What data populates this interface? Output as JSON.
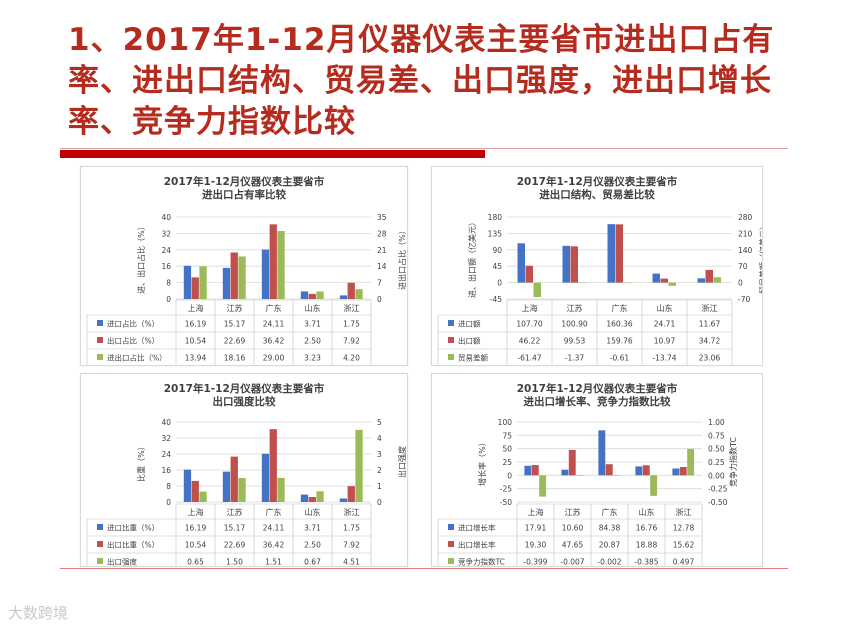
{
  "slide": {
    "title": "1、2017年1-12月仪器仪表主要省市进出口占有率、进出口结构、贸易差、出口强度，进出口增长率、竞争力指数比较"
  },
  "watermark": "大数跨境",
  "colors": {
    "blue": "#4472c4",
    "red": "#c0504d",
    "green": "#9bbb59",
    "title_red": "#b52b1e"
  },
  "chart_data": [
    {
      "type": "bar",
      "title_lines": [
        "2017年1-12月仪器仪表主要省市",
        "进出口占有率比较"
      ],
      "categories": [
        "上海",
        "江苏",
        "广东",
        "山东",
        "浙江"
      ],
      "ylabel_left": "进、出口占比（%）",
      "ylabel_right": "进出口占比（%）",
      "ylim_left": [
        0,
        40
      ],
      "ylim_right": [
        0,
        35
      ],
      "yticks_left": [
        "40",
        "32",
        "24",
        "16",
        "8",
        "0"
      ],
      "yticks_right": [
        "35",
        "28",
        "21",
        "14",
        "7",
        "0"
      ],
      "series": [
        {
          "name": "进口占比（%）",
          "color": "#4472c4",
          "axis": "left",
          "values": [
            16.19,
            15.17,
            24.11,
            3.71,
            1.75
          ],
          "labels": [
            "16.19",
            "15.17",
            "24.11",
            "3.71",
            "1.75"
          ]
        },
        {
          "name": "出口占比（%）",
          "color": "#c0504d",
          "axis": "left",
          "values": [
            10.54,
            22.69,
            36.42,
            2.5,
            7.92
          ],
          "labels": [
            "10.54",
            "22.69",
            "36.42",
            "2.50",
            "7.92"
          ]
        },
        {
          "name": "进出口占比（%）",
          "color": "#9bbb59",
          "axis": "right",
          "values": [
            13.94,
            18.16,
            29.0,
            3.23,
            4.2
          ],
          "labels": [
            "13.94",
            "18.16",
            "29.00",
            "3.23",
            "4.20"
          ]
        }
      ]
    },
    {
      "type": "bar",
      "title_lines": [
        "2017年1-12月仪器仪表主要省市",
        "进出口结构、贸易差比较"
      ],
      "categories": [
        "上海",
        "江苏",
        "广东",
        "山东",
        "浙江"
      ],
      "ylabel_left": "进、出口额（亿美元）",
      "ylabel_right": "贸易差额（亿美元）",
      "ylim_left": [
        -45,
        180
      ],
      "ylim_right": [
        -70,
        280
      ],
      "yticks_left": [
        "180",
        "135",
        "90",
        "45",
        "0",
        "-45"
      ],
      "yticks_right": [
        "280",
        "210",
        "140",
        "70",
        "0",
        "-70"
      ],
      "series": [
        {
          "name": "进口额",
          "color": "#4472c4",
          "axis": "left",
          "values": [
            107.7,
            100.9,
            160.36,
            24.71,
            11.67
          ],
          "labels": [
            "107.70",
            "100.90",
            "160.36",
            "24.71",
            "11.67"
          ]
        },
        {
          "name": "出口额",
          "color": "#c0504d",
          "axis": "left",
          "values": [
            46.22,
            99.53,
            159.76,
            10.97,
            34.72
          ],
          "labels": [
            "46.22",
            "99.53",
            "159.76",
            "10.97",
            "34.72"
          ]
        },
        {
          "name": "贸易差额",
          "color": "#9bbb59",
          "axis": "right",
          "values": [
            -61.47,
            -1.37,
            -0.61,
            -13.74,
            23.06
          ],
          "labels": [
            "-61.47",
            "-1.37",
            "-0.61",
            "-13.74",
            "23.06"
          ]
        }
      ]
    },
    {
      "type": "bar",
      "title_lines": [
        "2017年1-12月仪器仪表主要省市",
        "出口强度比较"
      ],
      "categories": [
        "上海",
        "江苏",
        "广东",
        "山东",
        "浙江"
      ],
      "ylabel_left": "比重（%）",
      "ylabel_right": "出口强度",
      "ylim_left": [
        0,
        40
      ],
      "ylim_right": [
        0,
        5
      ],
      "yticks_left": [
        "40",
        "32",
        "24",
        "16",
        "8",
        "0"
      ],
      "yticks_right": [
        "5",
        "4",
        "3",
        "2",
        "1",
        "0"
      ],
      "series": [
        {
          "name": "进口比重（%）",
          "color": "#4472c4",
          "axis": "left",
          "values": [
            16.19,
            15.17,
            24.11,
            3.71,
            1.75
          ],
          "labels": [
            "16.19",
            "15.17",
            "24.11",
            "3.71",
            "1.75"
          ]
        },
        {
          "name": "出口比重（%）",
          "color": "#c0504d",
          "axis": "left",
          "values": [
            10.54,
            22.69,
            36.42,
            2.5,
            7.92
          ],
          "labels": [
            "10.54",
            "22.69",
            "36.42",
            "2.50",
            "7.92"
          ]
        },
        {
          "name": "出口强度",
          "color": "#9bbb59",
          "axis": "right",
          "values": [
            0.65,
            1.5,
            1.51,
            0.67,
            4.51
          ],
          "labels": [
            "0.65",
            "1.50",
            "1.51",
            "0.67",
            "4.51"
          ]
        }
      ]
    },
    {
      "type": "bar",
      "title_lines": [
        "2017年1-12月仪器仪表主要省市",
        "进出口增长率、竞争力指数比较"
      ],
      "categories": [
        "上海",
        "江苏",
        "广东",
        "山东",
        "浙江"
      ],
      "ylabel_left": "增长率（%）",
      "ylabel_right": "竞争力指数TC",
      "ylim_left": [
        -50,
        100
      ],
      "ylim_right": [
        -0.5,
        1.0
      ],
      "yticks_left": [
        "100",
        "75",
        "50",
        "25",
        "0",
        "-25",
        "-50"
      ],
      "yticks_right": [
        "1.00",
        "0.75",
        "0.50",
        "0.25",
        "0.00",
        "-0.25",
        "-0.50"
      ],
      "series": [
        {
          "name": "进口增长率",
          "color": "#4472c4",
          "axis": "left",
          "values": [
            17.91,
            10.6,
            84.38,
            16.76,
            12.78
          ],
          "labels": [
            "17.91",
            "10.60",
            "84.38",
            "16.76",
            "12.78"
          ]
        },
        {
          "name": "出口增长率",
          "color": "#c0504d",
          "axis": "left",
          "values": [
            19.3,
            47.65,
            20.87,
            18.88,
            15.62
          ],
          "labels": [
            "19.30",
            "47.65",
            "20.87",
            "18.88",
            "15.62"
          ]
        },
        {
          "name": "竞争力指数TC",
          "color": "#9bbb59",
          "axis": "right",
          "values": [
            -0.399,
            -0.007,
            -0.002,
            -0.385,
            0.497
          ],
          "labels": [
            "-0.399",
            "-0.007",
            "-0.002",
            "-0.385",
            "0.497"
          ]
        }
      ]
    }
  ]
}
